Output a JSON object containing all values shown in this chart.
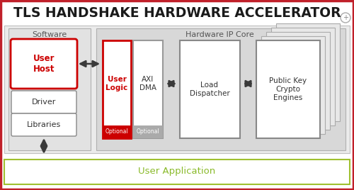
{
  "title": "TLS HANDSHAKE HARDWARE ACCELERATOR",
  "bg_color": "#ffffff",
  "border_color": "#c0202a",
  "software_label": "Software",
  "hardware_label": "Hardware IP Core",
  "user_app_label": "User Application",
  "user_app_color": "#8aba2a",
  "user_app_border": "#a0c030",
  "layout": {
    "fig_w": 5.0,
    "fig_h": 2.68,
    "dpi": 100
  }
}
